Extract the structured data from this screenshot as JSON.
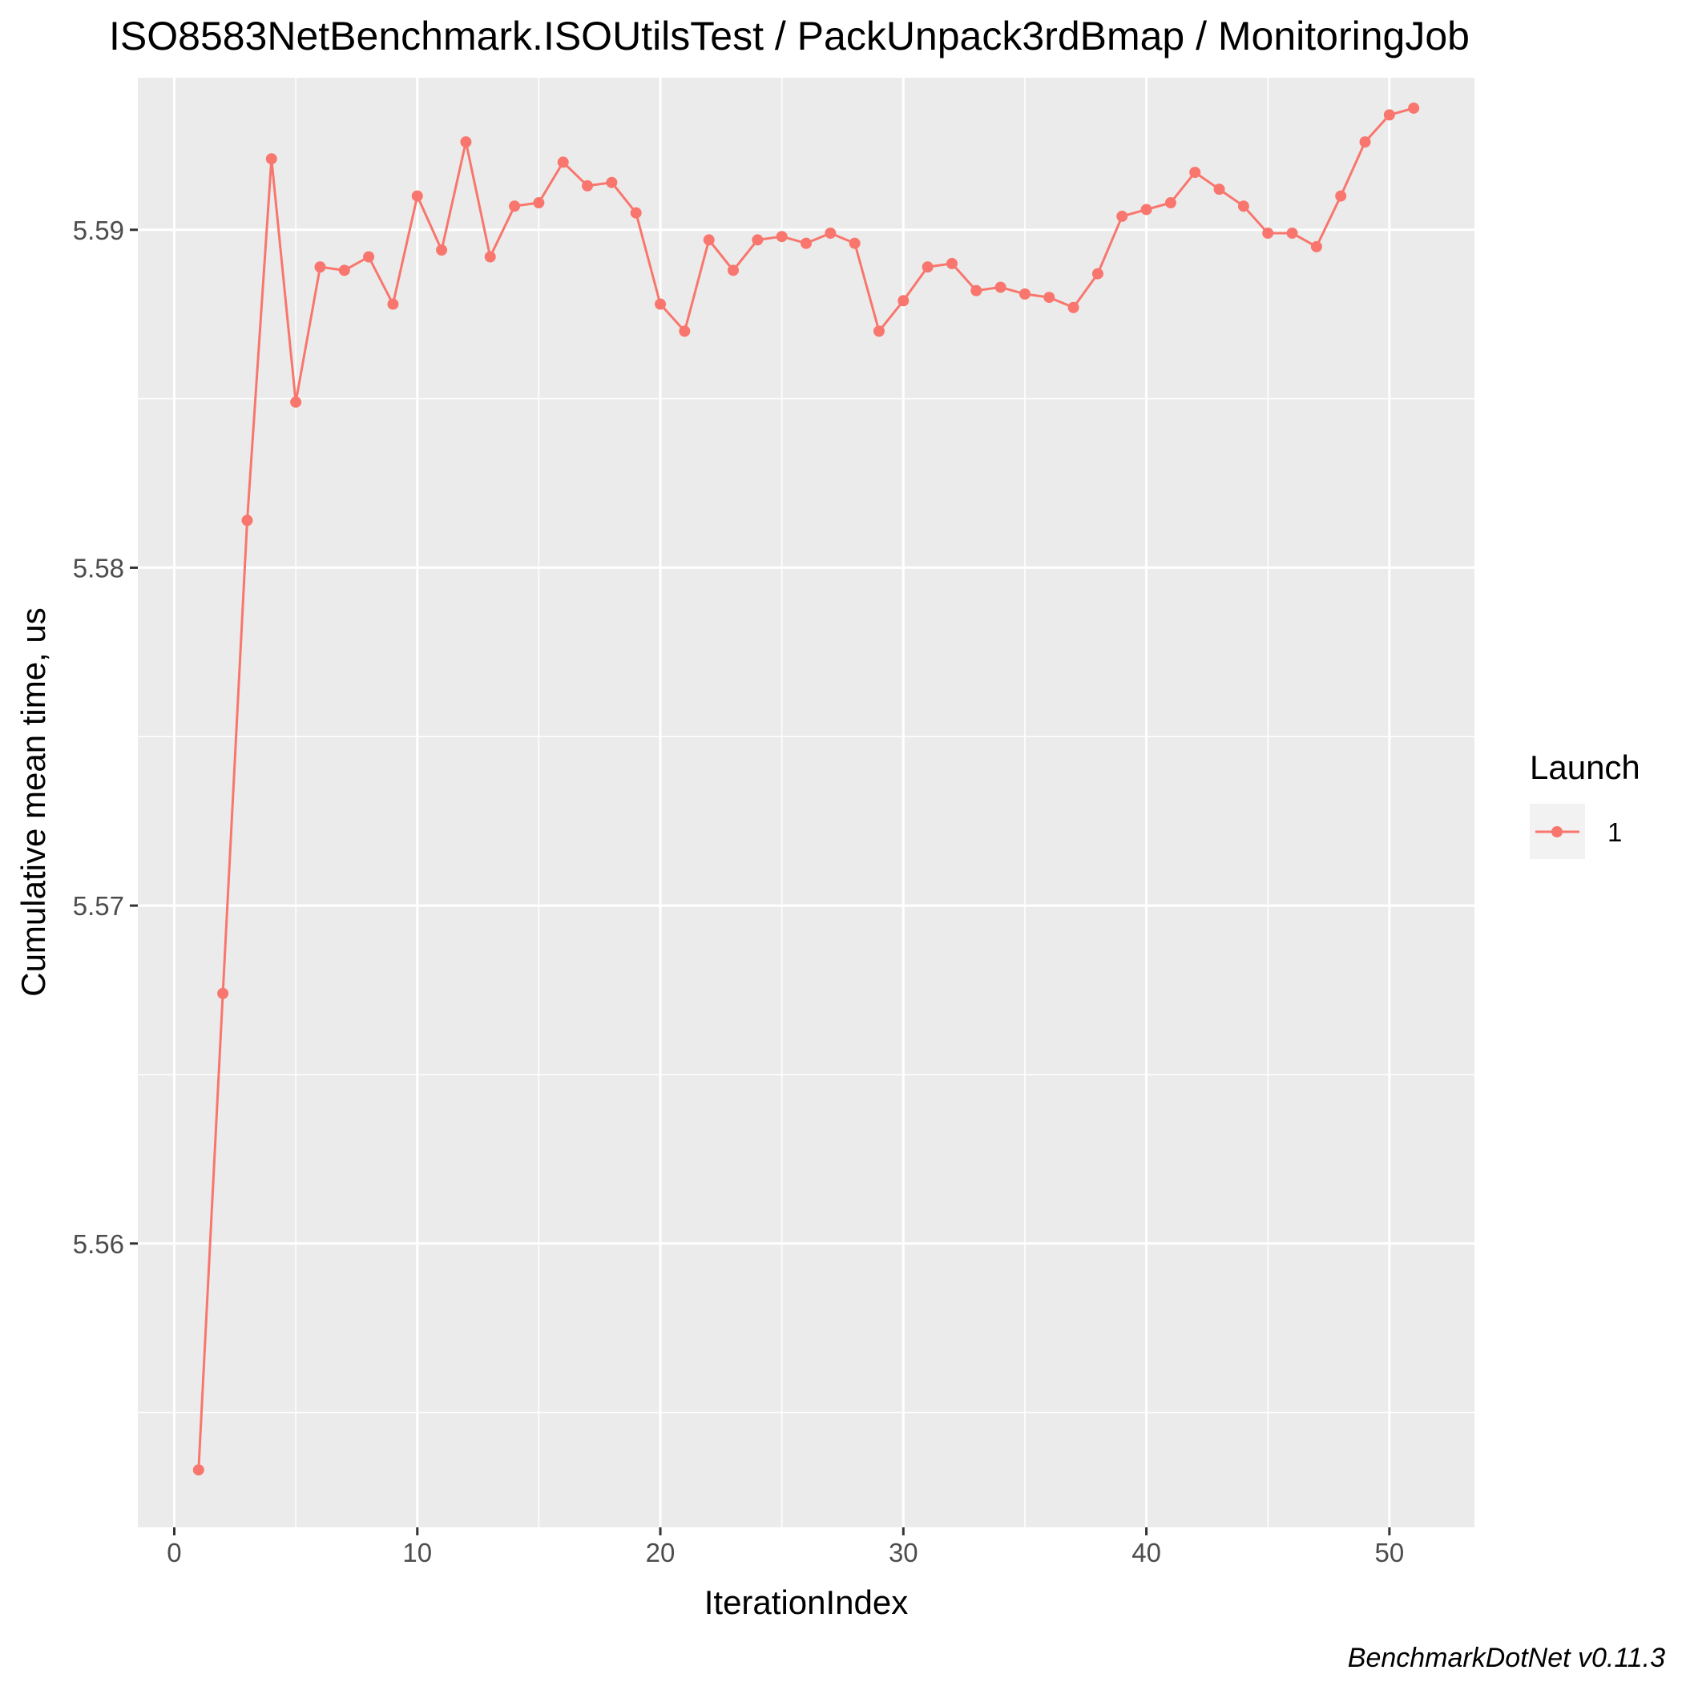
{
  "chart_data": {
    "type": "line",
    "title": "ISO8583NetBenchmark.ISOUtilsTest / PackUnpack3rdBmap / MonitoringJob",
    "xlabel": "IterationIndex",
    "ylabel": "Cumulative mean time, us",
    "caption": "BenchmarkDotNet v0.11.3",
    "xlim": [
      -1.5,
      53.5
    ],
    "ylim": [
      5.5516,
      5.5945
    ],
    "x_ticks": [
      0,
      10,
      20,
      30,
      40,
      50
    ],
    "x_tick_labels": [
      "0",
      "10",
      "20",
      "30",
      "40",
      "50"
    ],
    "y_ticks": [
      5.56,
      5.57,
      5.58,
      5.59
    ],
    "y_tick_labels": [
      "5.56",
      "5.57",
      "5.58",
      "5.59"
    ],
    "grid": true,
    "legend": {
      "title": "Launch",
      "position": "right"
    },
    "series": [
      {
        "name": "1",
        "color": "#F8766D",
        "x": [
          1,
          2,
          3,
          4,
          5,
          6,
          7,
          8,
          9,
          10,
          11,
          12,
          13,
          14,
          15,
          16,
          17,
          18,
          19,
          20,
          21,
          22,
          23,
          24,
          25,
          26,
          27,
          28,
          29,
          30,
          31,
          32,
          33,
          34,
          35,
          36,
          37,
          38,
          39,
          40,
          41,
          42,
          43,
          44,
          45,
          46,
          47,
          48,
          49,
          50,
          51
        ],
        "values": [
          5.5533,
          5.5674,
          5.5814,
          5.5921,
          5.5849,
          5.5889,
          5.5888,
          5.5892,
          5.5878,
          5.591,
          5.5894,
          5.5926,
          5.5892,
          5.5907,
          5.5908,
          5.592,
          5.5913,
          5.5914,
          5.5905,
          5.5878,
          5.587,
          5.5897,
          5.5888,
          5.5897,
          5.5898,
          5.5896,
          5.5899,
          5.5896,
          5.587,
          5.5879,
          5.5889,
          5.589,
          5.5882,
          5.5883,
          5.5881,
          5.588,
          5.5877,
          5.5887,
          5.5904,
          5.5906,
          5.5908,
          5.5917,
          5.5912,
          5.5907,
          5.5899,
          5.5899,
          5.5895,
          5.591,
          5.5926,
          5.5934,
          5.5936
        ]
      }
    ]
  }
}
